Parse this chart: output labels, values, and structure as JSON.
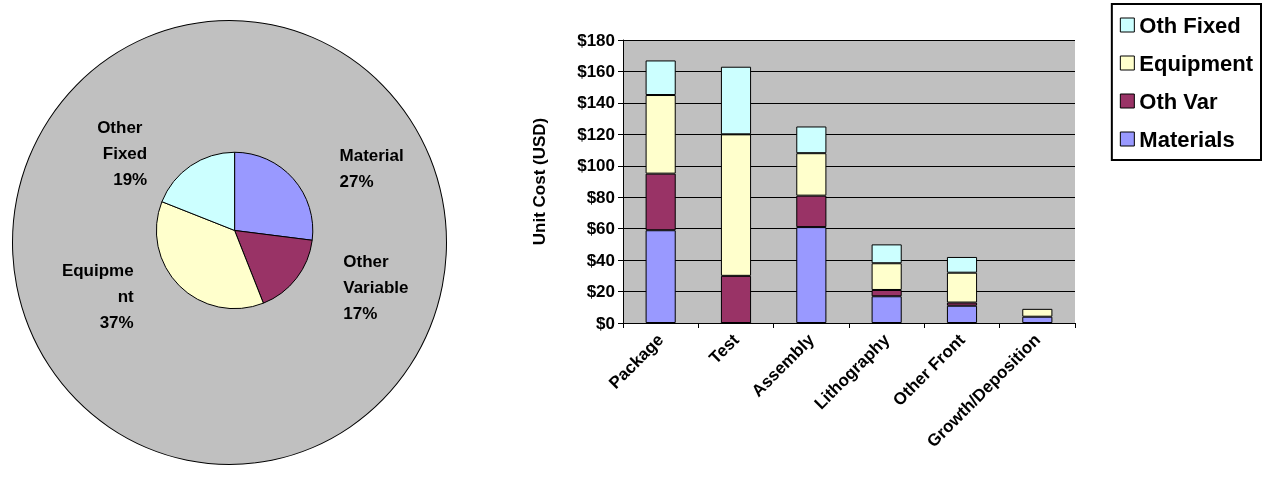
{
  "chart_data": [
    {
      "type": "pie",
      "categories": [
        "Material",
        "Other Variable",
        "Equipment",
        "Other Fixed"
      ],
      "values": [
        27,
        17,
        37,
        19
      ],
      "colors": [
        "#9999ff",
        "#993366",
        "#ffffcc",
        "#ccffff"
      ],
      "value_labels": [
        "27%",
        "17%",
        "37%",
        "19%"
      ]
    },
    {
      "type": "bar",
      "stacked": true,
      "ylabel": "Unit Cost (USD)",
      "categories": [
        "Package",
        "Test",
        "Assembly",
        "Lithography",
        "Other Front",
        "Growth/Deposition"
      ],
      "ylim": [
        0,
        180
      ],
      "yticks": [
        {
          "value": 0,
          "label": "$0"
        },
        {
          "value": 20,
          "label": "$20"
        },
        {
          "value": 40,
          "label": "$40"
        },
        {
          "value": 60,
          "label": "$60"
        },
        {
          "value": 80,
          "label": "$80"
        },
        {
          "value": 100,
          "label": "$100"
        },
        {
          "value": 120,
          "label": "$120"
        },
        {
          "value": 140,
          "label": "$140"
        },
        {
          "value": 160,
          "label": "$160"
        },
        {
          "value": 180,
          "label": "$180"
        }
      ],
      "grid": "y",
      "legend": "top right",
      "series": [
        {
          "name": "Materials",
          "color": "#9999ff",
          "values": [
            59,
            0,
            61,
            17,
            11,
            4
          ]
        },
        {
          "name": "Oth Var",
          "color": "#993366",
          "values": [
            36,
            30,
            20,
            4,
            2,
            null
          ]
        },
        {
          "name": "Equipment",
          "color": "#ffffcc",
          "values": [
            50,
            90,
            27,
            17,
            19,
            5
          ]
        },
        {
          "name": "Oth Fixed",
          "color": "#ccffff",
          "values": [
            22,
            43,
            17,
            12,
            10,
            null
          ]
        }
      ]
    }
  ]
}
